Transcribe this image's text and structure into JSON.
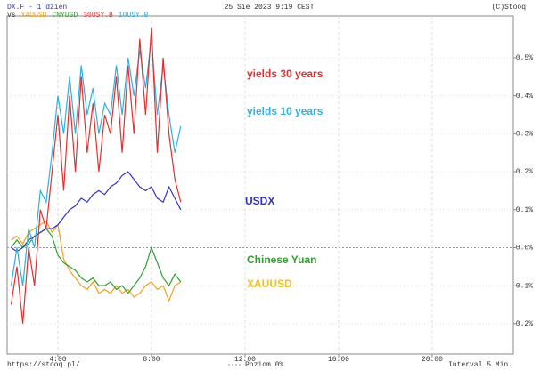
{
  "chart_data": {
    "type": "line",
    "title": "DX.F - 1 dzien",
    "subtitle": "25 Sie 2023 9:19 CEST",
    "source": "(C)Stooq",
    "legend_prefix": "vs",
    "footer": {
      "url": "https://stooq.pl/",
      "reference": "Poziom 0%",
      "interval": "Interval 5 Min."
    },
    "x": [
      2,
      2.25,
      2.5,
      2.75,
      3,
      3.25,
      3.5,
      3.75,
      4,
      4.25,
      4.5,
      4.75,
      5,
      5.25,
      5.5,
      5.75,
      6,
      6.25,
      6.5,
      6.75,
      7,
      7.25,
      7.5,
      7.75,
      8,
      8.25,
      8.5,
      8.75,
      9,
      9.25
    ],
    "xlim": [
      1.83,
      23.47
    ],
    "xticks": [
      {
        "value": 4,
        "label": "4:00"
      },
      {
        "value": 8,
        "label": "8:00"
      },
      {
        "value": 12,
        "label": "12:00"
      },
      {
        "value": 16,
        "label": "16:00"
      },
      {
        "value": 20,
        "label": "20:00"
      }
    ],
    "ylim": [
      -0.28,
      0.61
    ],
    "yticks": [
      {
        "value": -0.2,
        "label": "-0.2%"
      },
      {
        "value": -0.1,
        "label": "-0.1%"
      },
      {
        "value": 0,
        "label": "0.0%"
      },
      {
        "value": 0.1,
        "label": "0.1%"
      },
      {
        "value": 0.2,
        "label": "0.2%"
      },
      {
        "value": 0.3,
        "label": "0.3%"
      },
      {
        "value": 0.4,
        "label": "0.4%"
      },
      {
        "value": 0.5,
        "label": "0.5%"
      }
    ],
    "grid": true,
    "series": [
      {
        "name": "DX.F",
        "color": "#3333c0",
        "values": [
          0.0,
          -0.01,
          0.0,
          0.02,
          0.03,
          0.04,
          0.05,
          0.05,
          0.06,
          0.08,
          0.1,
          0.11,
          0.13,
          0.12,
          0.14,
          0.15,
          0.14,
          0.16,
          0.17,
          0.19,
          0.2,
          0.18,
          0.16,
          0.15,
          0.16,
          0.13,
          0.12,
          0.16,
          0.13,
          0.1
        ]
      },
      {
        "name": "XAUUSD",
        "color": "#f0a020",
        "values": [
          0.02,
          0.03,
          0.01,
          0.04,
          0.05,
          0.06,
          0.07,
          0.04,
          0.06,
          -0.03,
          -0.06,
          -0.08,
          -0.1,
          -0.11,
          -0.09,
          -0.12,
          -0.11,
          -0.12,
          -0.1,
          -0.12,
          -0.11,
          -0.13,
          -0.12,
          -0.1,
          -0.09,
          -0.11,
          -0.1,
          -0.14,
          -0.1,
          -0.09
        ]
      },
      {
        "name": "CNYUSD",
        "color": "#30a030",
        "values": [
          0.0,
          0.02,
          0.0,
          0.01,
          0.03,
          0.04,
          0.05,
          0.03,
          -0.02,
          -0.04,
          -0.05,
          -0.06,
          -0.08,
          -0.09,
          -0.08,
          -0.1,
          -0.1,
          -0.09,
          -0.11,
          -0.1,
          -0.12,
          -0.1,
          -0.08,
          -0.05,
          0.0,
          -0.04,
          -0.08,
          -0.1,
          -0.07,
          -0.09
        ]
      },
      {
        "name": "30USY.B",
        "color": "#e03030",
        "values": [
          -0.15,
          -0.05,
          -0.2,
          0.0,
          -0.1,
          0.1,
          0.05,
          0.2,
          0.35,
          0.15,
          0.4,
          0.2,
          0.45,
          0.25,
          0.38,
          0.2,
          0.35,
          0.3,
          0.45,
          0.25,
          0.48,
          0.3,
          0.55,
          0.35,
          0.58,
          0.25,
          0.5,
          0.3,
          0.18,
          0.12
        ]
      },
      {
        "name": "10USY.B",
        "color": "#30b0e0",
        "values": [
          -0.1,
          0.0,
          -0.1,
          0.05,
          0.0,
          0.15,
          0.12,
          0.25,
          0.4,
          0.3,
          0.45,
          0.3,
          0.48,
          0.35,
          0.42,
          0.3,
          0.38,
          0.35,
          0.48,
          0.35,
          0.5,
          0.4,
          0.52,
          0.42,
          0.55,
          0.35,
          0.48,
          0.35,
          0.25,
          0.32
        ]
      }
    ],
    "annotations": [
      {
        "text": "yields 30 years",
        "color": "#e03030"
      },
      {
        "text": "yields 10 years",
        "color": "#30b0e0"
      },
      {
        "text": "USDX",
        "color": "#3333c0"
      },
      {
        "text": "Chinese Yuan",
        "color": "#30a030"
      },
      {
        "text": "XAUUSD",
        "color": "#f0c020"
      }
    ]
  }
}
